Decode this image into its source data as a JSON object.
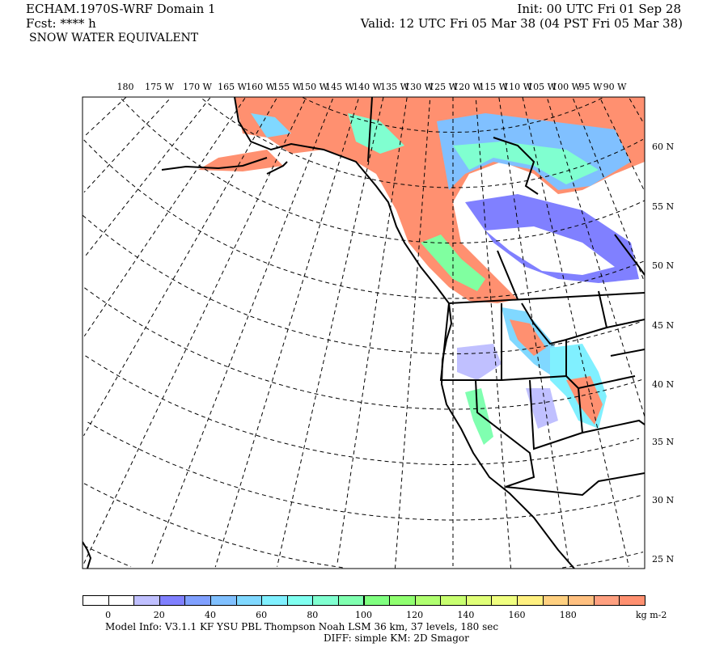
{
  "header": {
    "title": "ECHAM.1970S-WRF Domain 1",
    "forecast": "Fcst: **** h",
    "field": "SNOW WATER EQUIVALENT",
    "init": "Init: 00 UTC Fri 01 Sep 28",
    "valid": "Valid: 12 UTC Fri 05 Mar 38 (04 PST Fri 05 Mar 38)"
  },
  "map": {
    "longitude_labels": [
      "180",
      "175 W",
      "170 W",
      "165 W",
      "160 W",
      "155 W",
      "150 W",
      "145 W",
      "140 W",
      "135 W",
      "130 W",
      "125 W",
      "120 W",
      "115 W",
      "110 W",
      "105 W",
      "100 W",
      "95 W",
      "90 W"
    ],
    "latitude_labels": [
      "60 N",
      "55 N",
      "50 N",
      "45 N",
      "40 N",
      "35 N",
      "30 N",
      "25 N"
    ]
  },
  "colorbar": {
    "colors": [
      "#ffffff",
      "#ffffff",
      "#c0c0ff",
      "#8080ff",
      "#80a0ff",
      "#80c0ff",
      "#80d8ff",
      "#80f0ff",
      "#80fff0",
      "#80ffd0",
      "#80ffb0",
      "#80ff80",
      "#90ff70",
      "#b0ff70",
      "#c8ff70",
      "#e0ff78",
      "#f0ff80",
      "#fff080",
      "#ffd080",
      "#ffc080",
      "#ffa080",
      "#ff9070"
    ],
    "tick_labels": [
      "0",
      "20",
      "40",
      "60",
      "80",
      "100",
      "120",
      "140",
      "160",
      "180"
    ],
    "units": "kg m-2"
  },
  "footer": {
    "model_info": "Model Info: V3.1.1    KF       YSU PBL   Thompson      Noah LSM   36 km,     37 levels,   180 sec",
    "diff": "DIFF: simple KM: 2D Smagor"
  }
}
